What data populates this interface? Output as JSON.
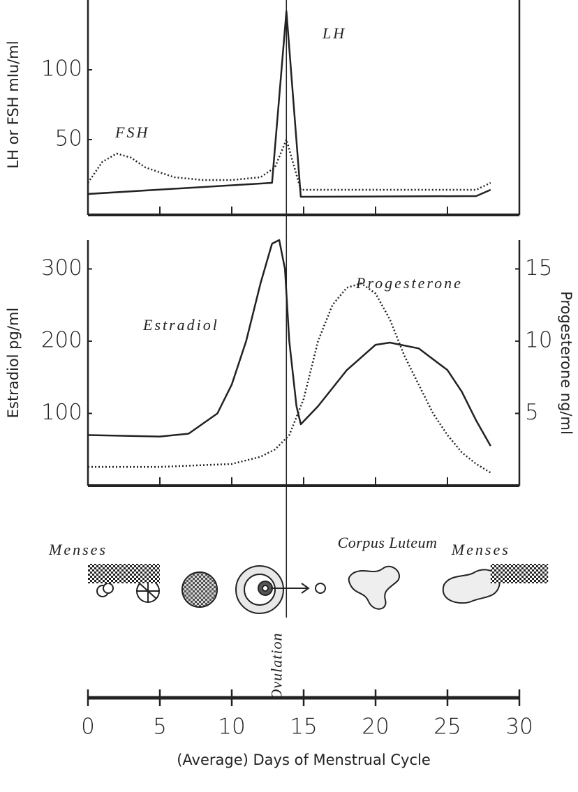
{
  "chart_data": [
    {
      "type": "line",
      "ylabel": "LH or FSH mIu/ml",
      "xlim": [
        0,
        30
      ],
      "xticks": [
        5,
        10,
        15,
        20,
        25
      ],
      "ylim": [
        -4,
        150
      ],
      "yticks": [
        50,
        100
      ],
      "series": [
        {
          "name": "LH",
          "color": "#222222",
          "style": "solid",
          "x": [
            0,
            12.8,
            13.8,
            14.8,
            27,
            28
          ],
          "values": [
            11,
            19,
            142,
            9,
            9.5,
            14
          ]
        },
        {
          "name": "FSH",
          "color": "#222222",
          "style": "dotted",
          "x": [
            0,
            1,
            2,
            3,
            4,
            6,
            8,
            10,
            12,
            13,
            13.8,
            14.3,
            14.8,
            27,
            28
          ],
          "values": [
            19,
            34,
            40,
            37,
            30,
            23,
            21,
            21,
            23,
            30,
            50,
            32,
            14,
            14,
            19
          ]
        }
      ]
    },
    {
      "type": "line",
      "ylabel": "Estradiol pg/ml",
      "y2label": "Progesterone ng/ml",
      "xlim": [
        0,
        30
      ],
      "xticks": [
        5,
        10,
        15,
        20,
        25
      ],
      "ylim": [
        0,
        340
      ],
      "yticks": [
        100,
        200,
        300
      ],
      "y2lim": [
        0,
        17
      ],
      "y2ticks": [
        5,
        10,
        15
      ],
      "series": [
        {
          "name": "Estradiol",
          "color": "#222222",
          "style": "solid",
          "x": [
            0,
            5,
            7,
            9,
            10,
            11,
            12,
            12.8,
            13.3,
            13.7,
            14,
            14.5,
            14.8,
            16,
            18,
            20,
            21,
            23,
            25,
            26,
            27,
            28
          ],
          "values": [
            70,
            68,
            72,
            100,
            140,
            200,
            280,
            335,
            340,
            300,
            200,
            110,
            85,
            110,
            160,
            195,
            198,
            190,
            160,
            130,
            90,
            55
          ]
        },
        {
          "name": "Progesterone",
          "color": "#222222",
          "style": "dotted",
          "axis": "y2",
          "x": [
            0,
            5,
            10,
            12,
            13,
            14,
            15,
            16,
            17,
            18,
            19,
            20,
            21,
            22,
            23,
            24,
            25,
            26,
            27,
            28
          ],
          "values": [
            1.3,
            1.3,
            1.5,
            2,
            2.5,
            3.5,
            6,
            10,
            12.5,
            13.7,
            14,
            13.3,
            11.5,
            9,
            7,
            5,
            3.5,
            2.3,
            1.5,
            0.9
          ]
        }
      ]
    },
    {
      "type": "timeline",
      "xlabel": "(Average) Days of Menstrual Cycle",
      "xlim": [
        0,
        30
      ],
      "xticks": [
        0,
        5,
        10,
        15,
        20,
        25,
        30
      ],
      "periods": [
        {
          "label": "Menses",
          "start": 0,
          "end": 5
        },
        {
          "label": "Menses",
          "start": 28,
          "end": 32
        }
      ],
      "ovulation": {
        "label": "Ovulation",
        "x": 13.8
      },
      "annotation": "Corpus Luteum"
    }
  ]
}
